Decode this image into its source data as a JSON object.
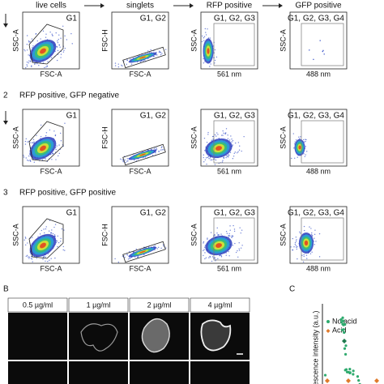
{
  "panel_a": {
    "column_headers": [
      "live cells",
      "singlets",
      "RFP positive",
      "GFP positive"
    ],
    "plots": [
      {
        "gate": "G1",
        "y_label": "SSC-A",
        "x_label": "FSC-A"
      },
      {
        "gate": "G1, G2",
        "y_label": "FSC-H",
        "x_label": "FSC-A"
      },
      {
        "gate": "G1, G2, G3",
        "y_label": "SSC-A",
        "x_label": "561 nm"
      },
      {
        "gate": "G1, G2, G3, G4",
        "y_label": "SSC-A",
        "x_label": "488 nm"
      }
    ],
    "rows": [
      {
        "number": "2",
        "label": "RFP positive, GFP negative"
      },
      {
        "number": "3",
        "label": "RFP positive, GFP positive"
      }
    ]
  },
  "panel_b": {
    "label": "B",
    "concentrations": [
      "0.5 µg/ml",
      "1 µg/ml",
      "2 µg/ml",
      "4 µg/ml"
    ]
  },
  "panel_c": {
    "label": "C",
    "y_label": "Fluorescence intensity (a.u.)",
    "legend": [
      "No acid",
      "Acid"
    ]
  }
}
